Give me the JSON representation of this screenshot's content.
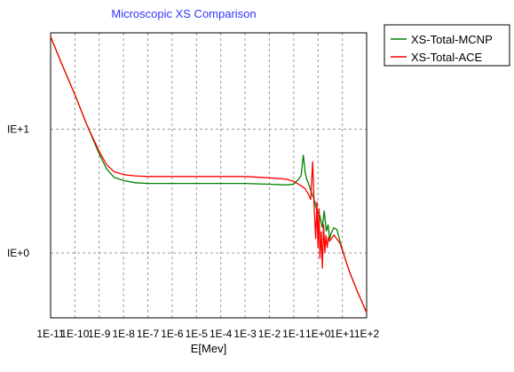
{
  "chart_data": {
    "type": "line",
    "title": "Microscopic XS Comparison",
    "xlabel": "E[Mev]",
    "ylabel": "",
    "x_scale": "log",
    "y_scale": "log",
    "xlim": [
      1e-11,
      100
    ],
    "ylim": [
      0.3,
      60
    ],
    "grid": true,
    "legend_position": "right-top",
    "x_tick_labels": [
      "1E-11",
      "1E-10",
      "1E-9",
      "1E-8",
      "1E-7",
      "1E-6",
      "1E-5",
      "1E-4",
      "1E-3",
      "1E-2",
      "1E-1",
      "1E+0",
      "1E+1",
      "1E+2"
    ],
    "x_tick_values": [
      1e-11,
      1e-10,
      1e-09,
      1e-08,
      1e-07,
      1e-06,
      1e-05,
      0.0001,
      0.001,
      0.01,
      0.1,
      1,
      10,
      100
    ],
    "y_tick_labels": [
      "IE+0",
      "IE+1"
    ],
    "y_tick_values": [
      1,
      10
    ],
    "series": [
      {
        "name": "XS-Total-MCNP",
        "color": "#008000",
        "x": [
          1e-11,
          3e-11,
          1e-10,
          3e-10,
          1e-09,
          2e-09,
          4e-09,
          1e-08,
          3e-08,
          1e-07,
          1e-06,
          1e-05,
          0.0001,
          0.001,
          0.01,
          0.05,
          0.1,
          0.15,
          0.2,
          0.25,
          0.3,
          0.35,
          0.4,
          0.5,
          0.7,
          0.9,
          1.2,
          1.5,
          1.8,
          2.2,
          2.6,
          3.0,
          3.5,
          4.5,
          6,
          8,
          12,
          20,
          40,
          100
        ],
        "y": [
          56,
          33,
          19,
          11,
          6.3,
          4.8,
          4.1,
          3.85,
          3.7,
          3.65,
          3.65,
          3.65,
          3.65,
          3.65,
          3.6,
          3.55,
          3.6,
          3.9,
          4.2,
          6.2,
          4.4,
          3.9,
          3.7,
          3.2,
          2.7,
          2.2,
          2.0,
          1.6,
          2.2,
          1.5,
          1.7,
          1.3,
          1.45,
          1.6,
          1.55,
          1.25,
          0.95,
          0.7,
          0.5,
          0.33
        ]
      },
      {
        "name": "XS-Total-ACE",
        "color": "#ff0000",
        "x": [
          1e-11,
          3e-11,
          1e-10,
          3e-10,
          1e-09,
          2e-09,
          4e-09,
          1e-08,
          3e-08,
          1e-07,
          1e-06,
          1e-05,
          0.0001,
          0.001,
          0.01,
          0.05,
          0.1,
          0.2,
          0.3,
          0.4,
          0.5,
          0.6,
          0.7,
          0.8,
          0.9,
          1.0,
          1.1,
          1.2,
          1.35,
          1.5,
          1.7,
          1.9,
          2.1,
          2.4,
          2.7,
          3.0,
          3.5,
          4.5,
          6,
          8,
          12,
          20,
          40,
          100
        ],
        "y": [
          56,
          33,
          19,
          11,
          6.6,
          5.2,
          4.55,
          4.3,
          4.2,
          4.15,
          4.15,
          4.15,
          4.15,
          4.15,
          4.05,
          3.95,
          3.8,
          3.5,
          3.3,
          3.0,
          2.7,
          5.5,
          2.3,
          1.3,
          2.6,
          1.1,
          2.3,
          0.9,
          1.5,
          0.75,
          1.7,
          1.0,
          1.4,
          1.1,
          1.35,
          1.25,
          1.3,
          1.4,
          1.3,
          1.2,
          0.95,
          0.7,
          0.5,
          0.33
        ]
      }
    ]
  }
}
